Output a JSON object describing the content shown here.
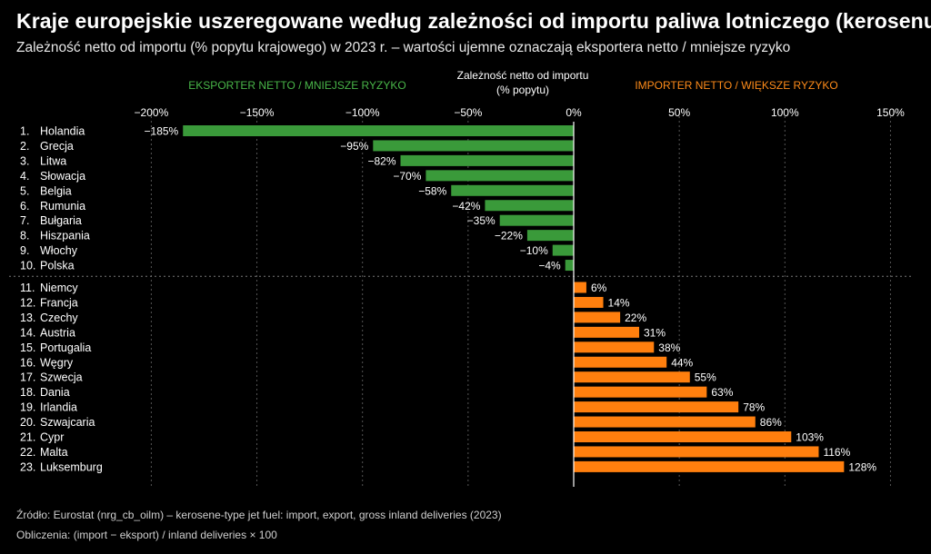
{
  "header": {
    "title": "Kraje europejskie uszeregowane według zależności od importu paliwa lotniczego (kerosenu)",
    "subtitle": "Zależność netto od importu (% popytu krajowego) w 2023 r. – wartości ujemne oznaczają eksportera netto / mniejsze ryzyko"
  },
  "footer": {
    "source": "Źródło: Eurostat (nrg_cb_oilm) – kerosene-type jet fuel: import, export, gross inland deliveries (2023)",
    "calculation": "Obliczenia: (import − eksport) / inland deliveries × 100"
  },
  "chart_data": {
    "type": "bar",
    "orientation": "horizontal",
    "xlabel": [
      "Zależność netto od importu",
      "(% popytu)"
    ],
    "annotations": {
      "left": "EKSPORTER NETTO / MNIEJSZE RYZYKO",
      "right": "IMPORTER NETTO / WIĘKSZE RYZYKO"
    },
    "xlim": [
      -200,
      150
    ],
    "xticks": [
      -200,
      -150,
      -100,
      -50,
      0,
      50,
      100,
      150
    ],
    "xtick_labels": [
      "−200%",
      "−150%",
      "−100%",
      "−50%",
      "0%",
      "50%",
      "100%",
      "150%"
    ],
    "grid": "vertical dashed",
    "colors": {
      "negative": "#3a9a3a",
      "positive": "#ff7f0e",
      "left_label": "#49b649",
      "right_label": "#ff8c1a"
    },
    "categories": [
      "1.  Holandia",
      "2.  Grecja",
      "3.  Litwa",
      "4.  Słowacja",
      "5.  Belgia",
      "6.  Rumunia",
      "7.  Bułgaria",
      "8.  Hiszpania",
      "9.  Włochy",
      "10.  Polska",
      "11.  Niemcy",
      "12.  Francja",
      "13.  Czechy",
      "14.  Austria",
      "15.  Portugalia",
      "16.  Węgry",
      "17.  Szwecja",
      "18.  Dania",
      "19.  Irlandia",
      "20.  Szwajcaria",
      "21.  Cypr",
      "22.  Malta",
      "23.  Luksemburg"
    ],
    "values": [
      -185,
      -95,
      -82,
      -70,
      -58,
      -42,
      -35,
      -22,
      -10,
      -4,
      6,
      14,
      22,
      31,
      38,
      44,
      55,
      63,
      78,
      86,
      103,
      116,
      128
    ],
    "value_labels": [
      "−185%",
      "−95%",
      "−82%",
      "−70%",
      "−58%",
      "−42%",
      "−35%",
      "−22%",
      "−10%",
      "−4%",
      "6%",
      "14%",
      "22%",
      "31%",
      "38%",
      "44%",
      "55%",
      "63%",
      "78%",
      "86%",
      "103%",
      "116%",
      "128%"
    ]
  }
}
